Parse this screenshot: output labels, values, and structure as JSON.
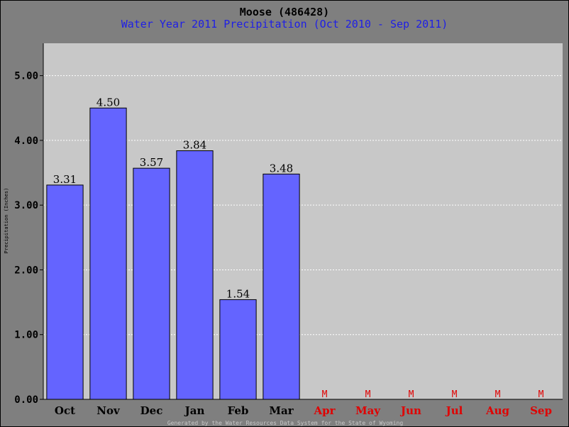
{
  "chart_data": {
    "type": "bar",
    "title": "Moose (486428)",
    "subtitle": "Water Year 2011 Precipitation (Oct 2010 - Sep 2011)",
    "ylabel": "Precipitation (Inches)",
    "xlabel": "",
    "ylim": [
      0,
      5.5
    ],
    "yticks": [
      "0.00",
      "1.00",
      "2.00",
      "3.00",
      "4.00",
      "5.00"
    ],
    "grid": true,
    "categories": [
      "Oct",
      "Nov",
      "Dec",
      "Jan",
      "Feb",
      "Mar",
      "Apr",
      "May",
      "Jun",
      "Jul",
      "Aug",
      "Sep"
    ],
    "values": [
      3.31,
      4.5,
      3.57,
      3.84,
      1.54,
      3.48,
      null,
      null,
      null,
      null,
      null,
      null
    ],
    "value_labels": [
      "3.31",
      "4.50",
      "3.57",
      "3.84",
      "1.54",
      "3.48",
      "M",
      "M",
      "M",
      "M",
      "M",
      "M"
    ],
    "missing_marker": "M",
    "footer": "Generated by the Water Resources Data System for the State of Wyoming",
    "colors": {
      "background": "#7f7f7f",
      "plot_area": "#c8c8c8",
      "bar": "#6464ff",
      "subtitle": "#1f1fe6",
      "missing": "#e00000",
      "axis_label": "#000000"
    }
  }
}
